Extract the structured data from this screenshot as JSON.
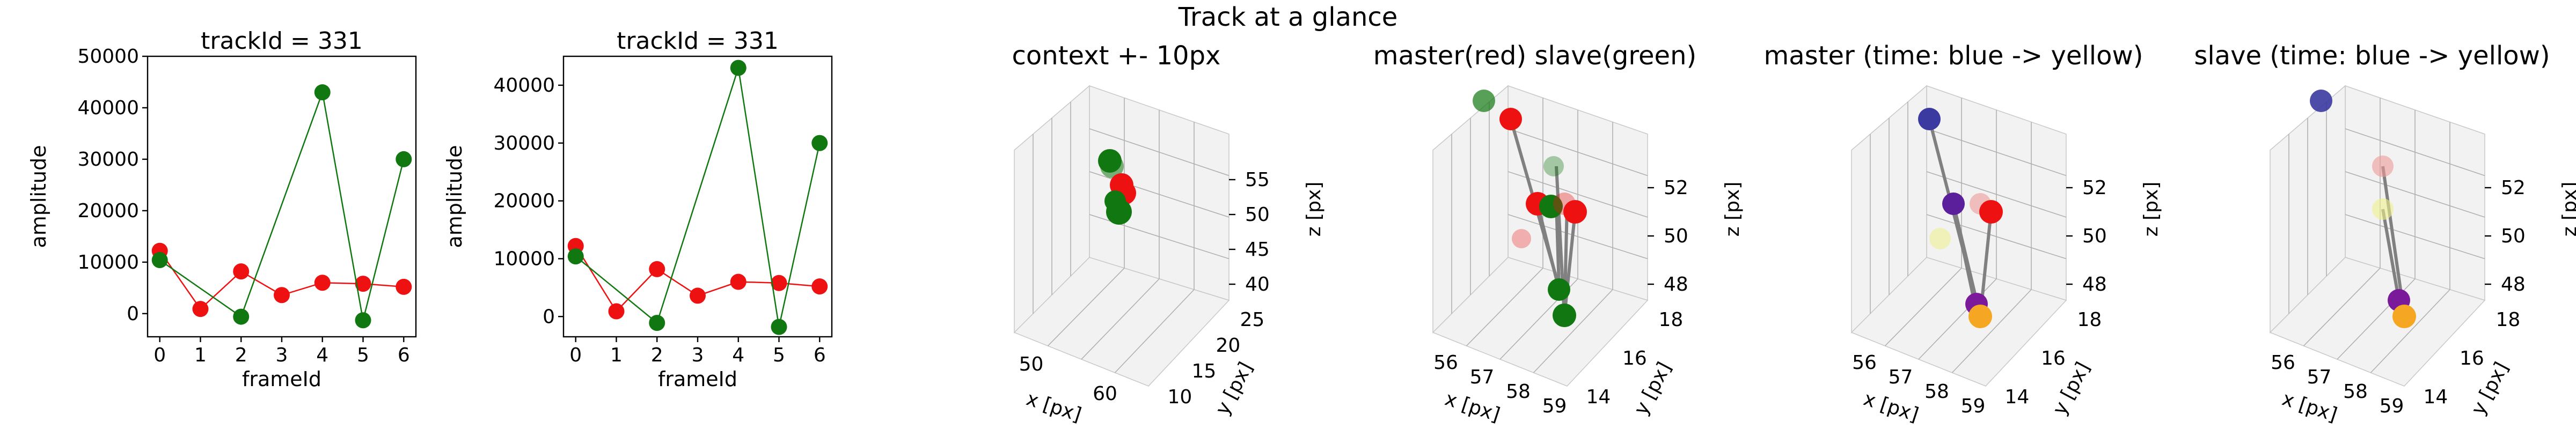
{
  "suptitle": "Track at a glance",
  "colors": {
    "red": "#ee1111",
    "green": "#117711",
    "gray": "#808080"
  },
  "chart_data": [
    {
      "type": "line",
      "title": "trackId = 331",
      "xlabel": "frameId",
      "ylabel": "amplitude",
      "xlim": [
        -0.3,
        6.3
      ],
      "ylim": [
        -4500,
        50000
      ],
      "xticks": [
        "0",
        "1",
        "2",
        "3",
        "4",
        "5",
        "6"
      ],
      "yticks": [
        "0",
        "10000",
        "20000",
        "30000",
        "40000",
        "50000"
      ],
      "series": [
        {
          "color": "red",
          "x": [
            0,
            1,
            2,
            3,
            4,
            5,
            6
          ],
          "y": [
            12200,
            900,
            8200,
            3600,
            6000,
            5800,
            5200
          ]
        },
        {
          "color": "green",
          "x": [
            0,
            2,
            4,
            5,
            6
          ],
          "y": [
            10400,
            -600,
            43000,
            -1300,
            30000
          ]
        }
      ]
    },
    {
      "type": "line",
      "title": "trackId = 331",
      "xlabel": "frameId",
      "ylabel": "amplitude",
      "xlim": [
        -0.3,
        6.3
      ],
      "ylim": [
        -3500,
        45000
      ],
      "xticks": [
        "0",
        "1",
        "2",
        "3",
        "4",
        "5",
        "6"
      ],
      "yticks": [
        "0",
        "10000",
        "20000",
        "30000",
        "40000"
      ],
      "series": [
        {
          "color": "red",
          "x": [
            0,
            1,
            2,
            3,
            4,
            5,
            6
          ],
          "y": [
            12200,
            900,
            8200,
            3600,
            6000,
            5800,
            5200
          ]
        },
        {
          "color": "green",
          "x": [
            0,
            2,
            4,
            5,
            6
          ],
          "y": [
            10400,
            -1100,
            43000,
            -1800,
            30000
          ]
        }
      ]
    },
    {
      "type": "scatter3d",
      "title": "context +- 10px",
      "xlabel": "x [px]",
      "ylabel": "y [px]",
      "zlabel": "z [px]",
      "xticks": [
        "50",
        "60"
      ],
      "yticks": [
        "10",
        "15",
        "20",
        "25"
      ],
      "zticks": [
        "40",
        "45",
        "50",
        "55"
      ],
      "note": "cluster of red and green spheres"
    },
    {
      "type": "scatter3d",
      "title": "master(red) slave(green)",
      "xlabel": "x [px]",
      "ylabel": "y [px]",
      "zlabel": "z [px]",
      "xticks": [
        "56",
        "57",
        "58",
        "59"
      ],
      "yticks": [
        "14",
        "16",
        "18"
      ],
      "zticks": [
        "48",
        "50",
        "52"
      ]
    },
    {
      "type": "scatter3d",
      "title": "master (time: blue -> yellow)",
      "xlabel": "x [px]",
      "ylabel": "y [px]",
      "zlabel": "z [px]",
      "xticks": [
        "56",
        "57",
        "58",
        "59"
      ],
      "yticks": [
        "14",
        "16",
        "18"
      ],
      "zticks": [
        "48",
        "50",
        "52"
      ]
    },
    {
      "type": "scatter3d",
      "title": "slave (time: blue -> yellow)",
      "xlabel": "x [px]",
      "ylabel": "y [px]",
      "zlabel": "z [px]",
      "xticks": [
        "56",
        "57",
        "58",
        "59"
      ],
      "yticks": [
        "14",
        "16",
        "18"
      ],
      "zticks": [
        "48",
        "50",
        "52"
      ]
    }
  ]
}
